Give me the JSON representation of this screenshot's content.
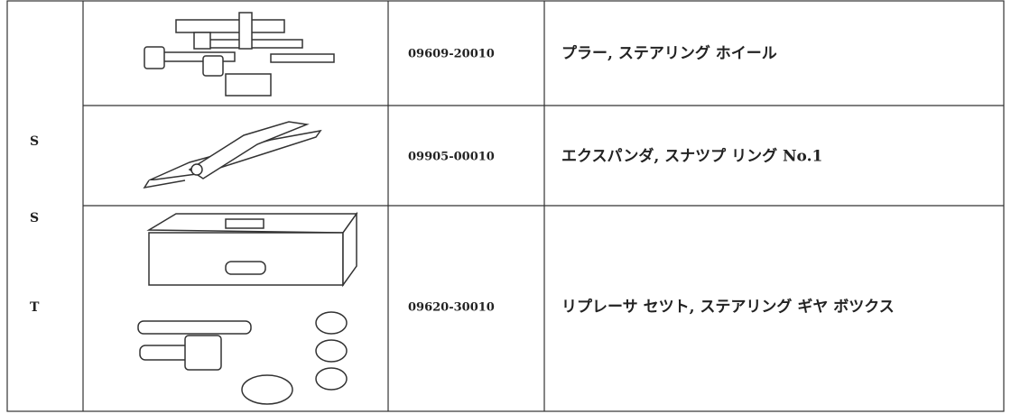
{
  "table": {
    "label_letters": [
      "S",
      "S",
      "T"
    ],
    "rows": [
      {
        "part_number": "09609-20010",
        "name": "プラー, ステアリング ホイール"
      },
      {
        "part_number": "09905-00010",
        "name": "エクスパンダ, スナツプ リング No.1"
      },
      {
        "part_number": "09620-30010",
        "name": "リプレーサ セツト, ステアリング ギヤ ボツクス"
      }
    ]
  }
}
